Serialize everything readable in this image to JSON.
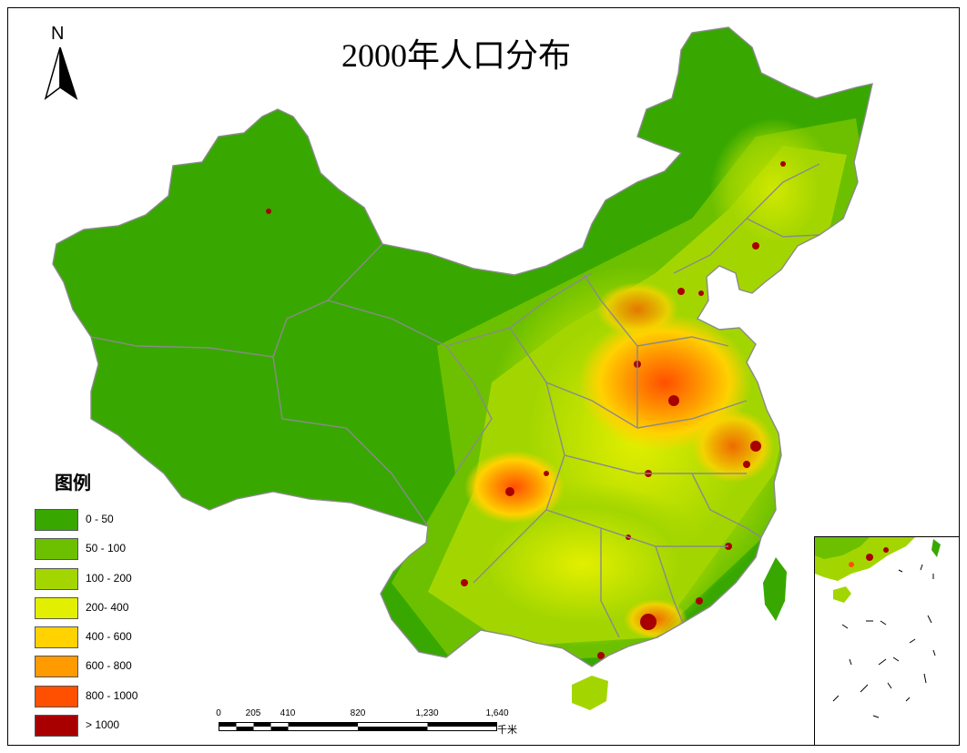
{
  "title": "2000年人口分布",
  "north_arrow": {
    "label": "N"
  },
  "legend": {
    "title": "图例",
    "items": [
      {
        "label": "0 - 50",
        "color": "#38a800"
      },
      {
        "label": "50 - 100",
        "color": "#6cc000"
      },
      {
        "label": "100 - 200",
        "color": "#a3d600"
      },
      {
        "label": "200- 400",
        "color": "#e3ef00"
      },
      {
        "label": "400 - 600",
        "color": "#ffd200"
      },
      {
        "label": "600 - 800",
        "color": "#ff9a00"
      },
      {
        "label": "800 - 1000",
        "color": "#ff4f00"
      },
      {
        "label": "> 1000",
        "color": "#a80000"
      }
    ]
  },
  "scale_bar": {
    "ticks": [
      "0",
      "205",
      "410",
      "820",
      "1,230",
      "1,640"
    ],
    "unit": "千米"
  },
  "colors": {
    "boundary": "#8a8a8a",
    "frame": "#000000"
  }
}
